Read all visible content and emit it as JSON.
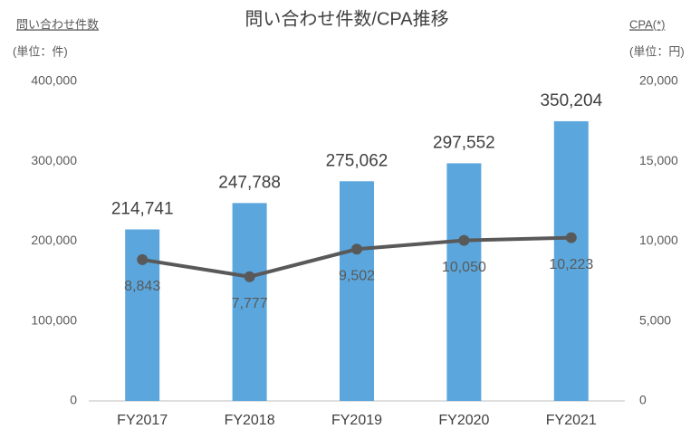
{
  "chart_data": {
    "type": "bar",
    "title": "問い合わせ件数/CPA推移",
    "y_label": "問い合わせ件数",
    "y_unit": "(単位：件)",
    "y2_label": "CPA(*)",
    "y2_unit": "(単位：円)",
    "categories": [
      "FY2017",
      "FY2018",
      "FY2019",
      "FY2020",
      "FY2021"
    ],
    "series": [
      {
        "type": "bar",
        "color": "#5ba7dd",
        "values": [
          214741,
          247788,
          275062,
          297552,
          350204
        ],
        "value_labels": [
          "214,741",
          "247,788",
          "275,062",
          "297,552",
          "350,204"
        ]
      },
      {
        "type": "line",
        "axis": "y2",
        "color": "#595959",
        "values": [
          8843,
          7777,
          9502,
          10050,
          10223
        ],
        "value_labels": [
          "8,843",
          "7,777",
          "9,502",
          "10,050",
          "10,223"
        ]
      }
    ],
    "ylim": [
      0,
      400000
    ],
    "yticks": [
      0,
      {
        "value": 100000,
        "label": "100,000"
      },
      {
        "value": 200000,
        "label": "200,000"
      },
      {
        "value": 300000,
        "label": "300,000"
      },
      {
        "value": 400000,
        "label": "400,000"
      }
    ],
    "y2lim": [
      0,
      20000
    ],
    "y2ticks": [
      0,
      {
        "value": 5000,
        "label": "5,000"
      },
      {
        "value": 10000,
        "label": "10,000"
      },
      {
        "value": 15000,
        "label": "15,000"
      },
      {
        "value": 20000,
        "label": "20,000"
      }
    ]
  }
}
